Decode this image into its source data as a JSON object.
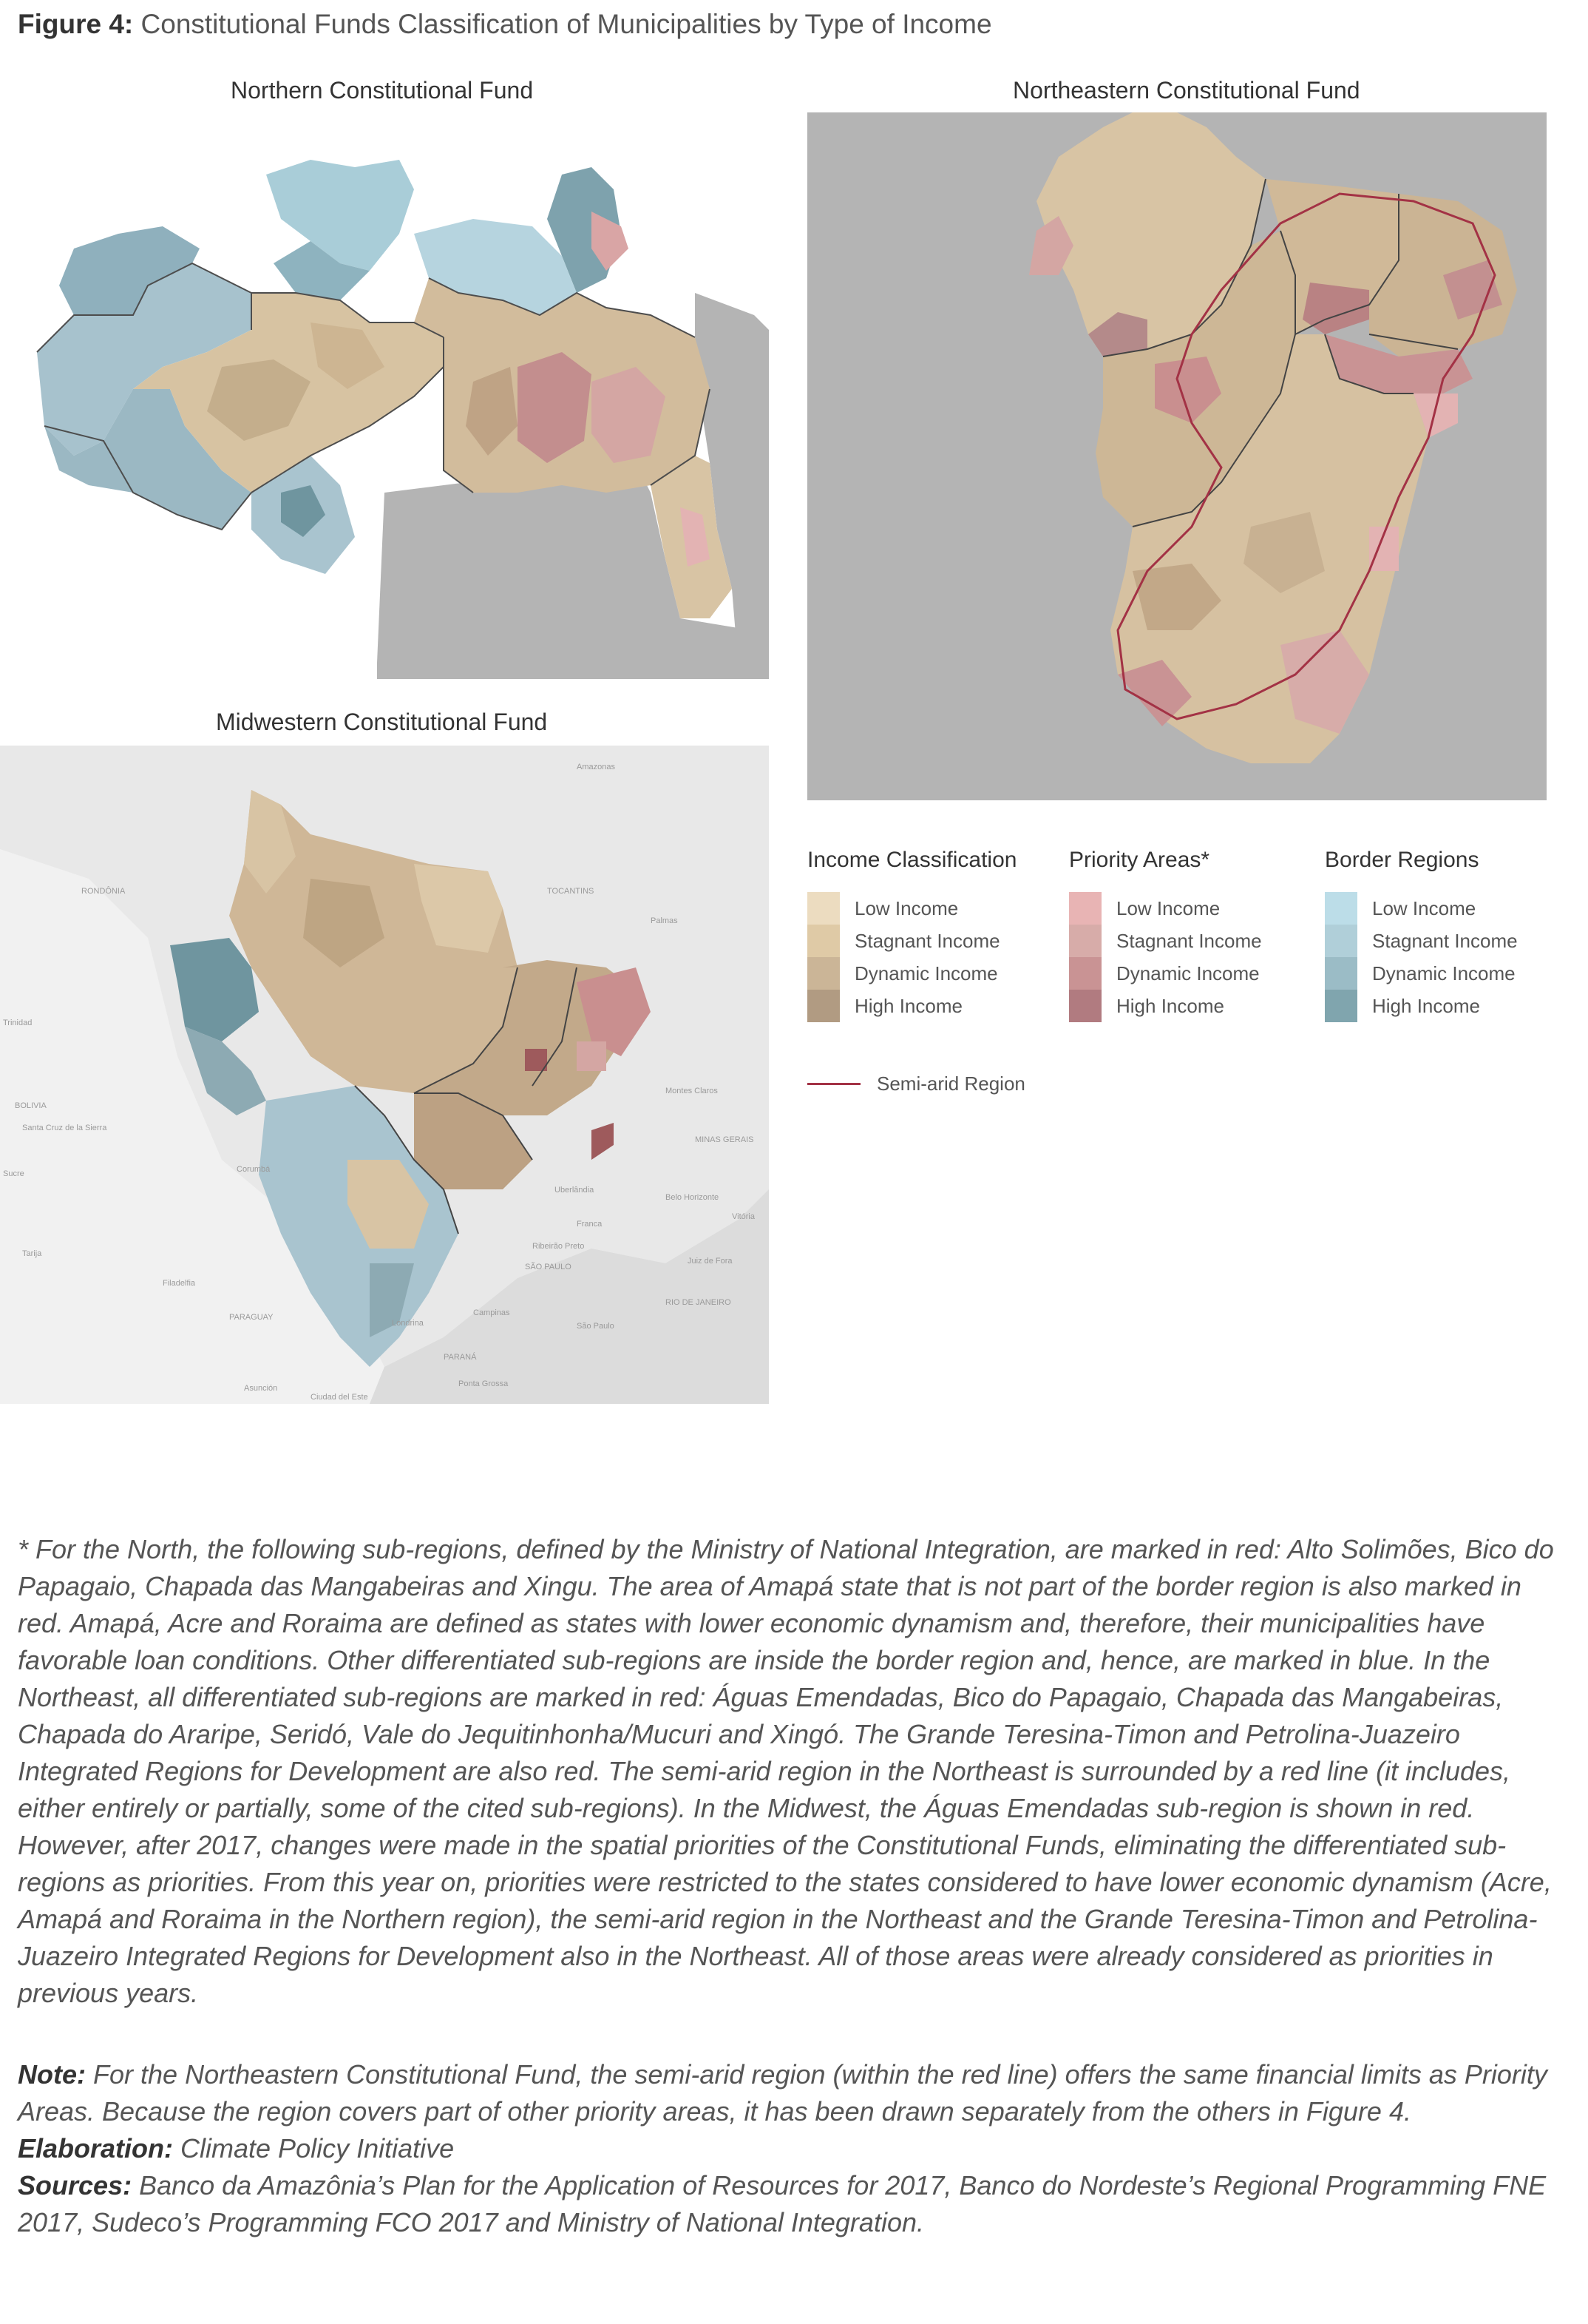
{
  "figure": {
    "label": "Figure 4:",
    "title": "Constitutional Funds Classification of Municipalities by Type of Income"
  },
  "maps": {
    "north": {
      "title": "Northern Constitutional Fund"
    },
    "northeast": {
      "title": "Northeastern Constitutional Fund"
    },
    "midwest": {
      "title": "Midwestern Constitutional Fund",
      "base_labels": [
        "Amazonas",
        "RONDÔNIA",
        "TOCANTINS",
        "Palmas",
        "BOLIVIA",
        "Santa Cruz de la Sierra",
        "Sucre",
        "Tarija",
        "Corumbá",
        "Filadelfia",
        "PARAGUAY",
        "Asunción",
        "Ciudad del Este",
        "MINAS GERAIS",
        "Belo Horizonte",
        "Uberlândia",
        "SÃO PAULO",
        "RIO DE JANEIRO",
        "Campinas",
        "São Paulo",
        "PARANÁ",
        "Londrina",
        "Ponta Grossa",
        "Trinidad",
        "Montes Claros",
        "Juiz de Fora",
        "Ribeirão Preto",
        "Franca",
        "Vitória"
      ]
    }
  },
  "legend": {
    "income": {
      "title": "Income Classification",
      "items": [
        {
          "label": "Low Income",
          "color": "#ecdcc0"
        },
        {
          "label": "Stagnant Income",
          "color": "#dfcaa6"
        },
        {
          "label": "Dynamic Income",
          "color": "#cbb597"
        },
        {
          "label": "High Income",
          "color": "#b19b82"
        }
      ]
    },
    "priority": {
      "title": "Priority Areas*",
      "items": [
        {
          "label": "Low Income",
          "color": "#e8b4b4"
        },
        {
          "label": "Stagnant Income",
          "color": "#d7aca9"
        },
        {
          "label": "Dynamic Income",
          "color": "#c99394"
        },
        {
          "label": "High Income",
          "color": "#b17b80"
        }
      ]
    },
    "border": {
      "title": "Border Regions",
      "items": [
        {
          "label": "Low Income",
          "color": "#bcdde8"
        },
        {
          "label": "Stagnant Income",
          "color": "#b0cfd9"
        },
        {
          "label": "Dynamic Income",
          "color": "#9bbcc6"
        },
        {
          "label": "High Income",
          "color": "#80a5ae"
        }
      ]
    },
    "semiarid": {
      "label": "Semi-arid Region",
      "color": "#a33245"
    }
  },
  "notes": {
    "footnote": "* For the North, the following sub-regions, defined by the Ministry of National Integration, are marked in red: Alto Solimões, Bico do Papagaio, Chapada das Mangabeiras and Xingu. The area of Amapá state that is not part of the border region is also marked in red. Amapá, Acre and Roraima are defined as states with lower economic dynamism and, therefore, their municipalities have favorable loan conditions. Other differentiated sub-regions are inside the border region and, hence, are marked in blue. In the Northeast, all differentiated sub-regions are marked in red: Águas Emendadas, Bico do Papagaio, Chapada das Mangabeiras, Chapada do Araripe, Seridó, Vale do Jequitinhonha/Mucuri and Xingó. The Grande Teresina-Timon and Petrolina-Juazeiro Integrated Regions for Development are also red. The semi-arid region in the Northeast is surrounded by a red line (it includes, either entirely or partially, some of the cited sub-regions). In the Midwest, the Águas Emendadas sub-region is shown in red. However, after 2017, changes were made in the spatial priorities of the Constitutional Funds, eliminating the differentiated sub-regions as priorities. From this year on, priorities were restricted to the states considered to have lower economic dynamism (Acre, Amapá and Roraima in the Northern region), the semi-arid region in the Northeast and the Grande Teresina-Timon and Petrolina-Juazeiro Integrated Regions for Development also in the Northeast. All of those areas were already considered as priorities in previous years.",
    "note_label": "Note:",
    "note": "For the Northeastern Constitutional Fund, the semi-arid region (within the red line) offers the same financial limits as Priority Areas. Because the region covers part of other priority areas, it has been drawn separately from the others in Figure 4.",
    "elaboration_label": "Elaboration:",
    "elaboration": "Climate Policy Initiative",
    "sources_label": "Sources:",
    "sources": "Banco da Amazônia’s Plan for the Application of Resources for 2017, Banco do Nordeste’s Regional Programming FNE 2017, Sudeco’s Programming FCO 2017 and Ministry of National Integration."
  }
}
